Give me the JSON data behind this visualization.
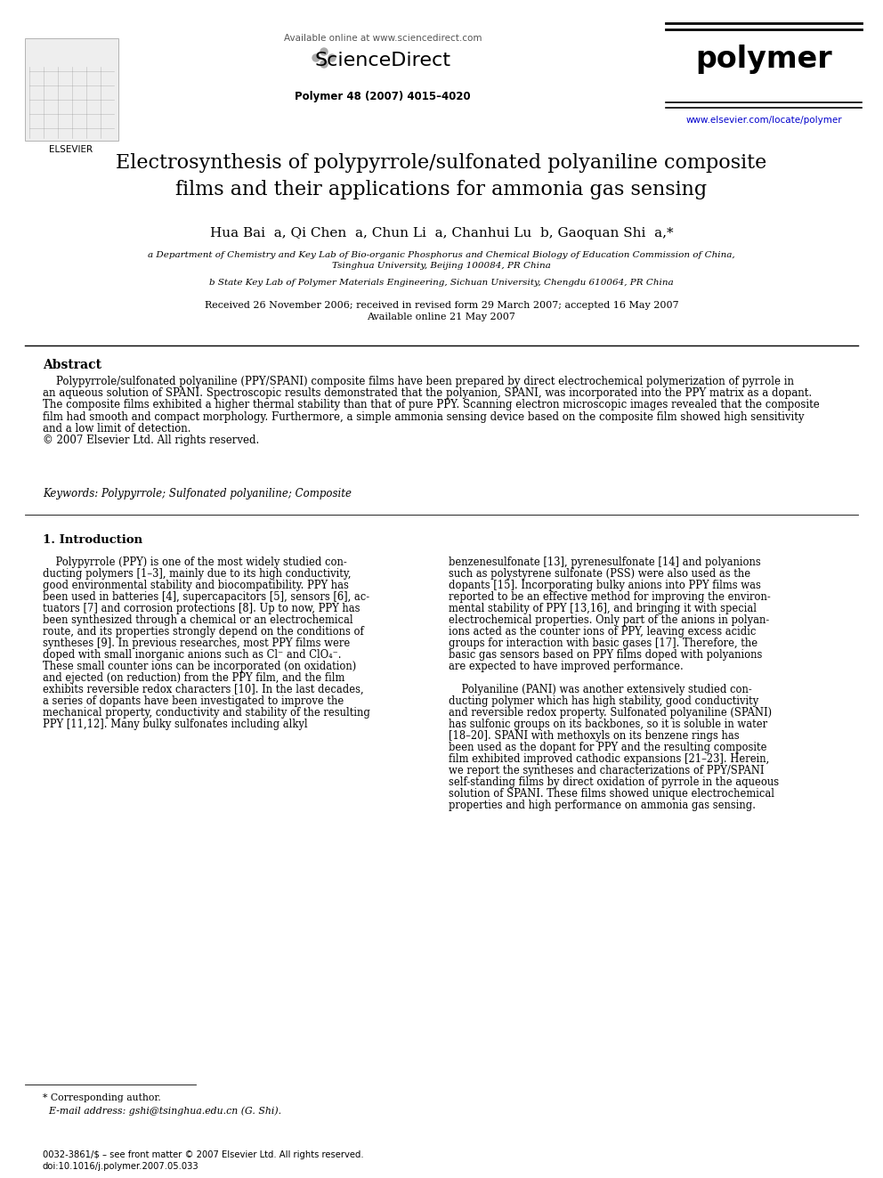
{
  "page_bg": "#ffffff",
  "header": {
    "available_online": "Available online at www.sciencedirect.com",
    "journal_name": "polymer",
    "journal_ref": "Polymer 48 (2007) 4015–4020",
    "url": "www.elsevier.com/locate/polymer"
  },
  "title": "Electrosynthesis of polypyrrole/sulfonated polyaniline composite\nfilms and their applications for ammonia gas sensing",
  "authors": "Hua Bai  a, Qi Chen  a, Chun Li  a, Chanhui Lu  b, Gaoquan Shi  a,*",
  "affil_a": "a Department of Chemistry and Key Lab of Bio-organic Phosphorus and Chemical Biology of Education Commission of China,\nTsinghua University, Beijing 100084, PR China",
  "affil_b": "b State Key Lab of Polymer Materials Engineering, Sichuan University, Chengdu 610064, PR China",
  "received": "Received 26 November 2006; received in revised form 29 March 2007; accepted 16 May 2007\nAvailable online 21 May 2007",
  "abstract_heading": "Abstract",
  "abstract_lines": [
    "    Polypyrrole/sulfonated polyaniline (PPY/SPANI) composite films have been prepared by direct electrochemical polymerization of pyrrole in",
    "an aqueous solution of SPANI. Spectroscopic results demonstrated that the polyanion, SPANI, was incorporated into the PPY matrix as a dopant.",
    "The composite films exhibited a higher thermal stability than that of pure PPY. Scanning electron microscopic images revealed that the composite",
    "film had smooth and compact morphology. Furthermore, a simple ammonia sensing device based on the composite film showed high sensitivity",
    "and a low limit of detection.",
    "© 2007 Elsevier Ltd. All rights reserved."
  ],
  "keywords": "Keywords: Polypyrrole; Sulfonated polyaniline; Composite",
  "intro_heading": "1. Introduction",
  "col1_lines": [
    "    Polypyrrole (PPY) is one of the most widely studied con-",
    "ducting polymers [1–3], mainly due to its high conductivity,",
    "good environmental stability and biocompatibility. PPY has",
    "been used in batteries [4], supercapacitors [5], sensors [6], ac-",
    "tuators [7] and corrosion protections [8]. Up to now, PPY has",
    "been synthesized through a chemical or an electrochemical",
    "route, and its properties strongly depend on the conditions of",
    "syntheses [9]. In previous researches, most PPY films were",
    "doped with small inorganic anions such as Cl⁻ and ClO₄⁻.",
    "These small counter ions can be incorporated (on oxidation)",
    "and ejected (on reduction) from the PPY film, and the film",
    "exhibits reversible redox characters [10]. In the last decades,",
    "a series of dopants have been investigated to improve the",
    "mechanical property, conductivity and stability of the resulting",
    "PPY [11,12]. Many bulky sulfonates including alkyl"
  ],
  "col2_lines": [
    "benzenesulfonate [13], pyrenesulfonate [14] and polyanions",
    "such as polystyrene sulfonate (PSS) were also used as the",
    "dopants [15]. Incorporating bulky anions into PPY films was",
    "reported to be an effective method for improving the environ-",
    "mental stability of PPY [13,16], and bringing it with special",
    "electrochemical properties. Only part of the anions in polyan-",
    "ions acted as the counter ions of PPY, leaving excess acidic",
    "groups for interaction with basic gases [17]. Therefore, the",
    "basic gas sensors based on PPY films doped with polyanions",
    "are expected to have improved performance.",
    "",
    "    Polyaniline (PANI) was another extensively studied con-",
    "ducting polymer which has high stability, good conductivity",
    "and reversible redox property. Sulfonated polyaniline (SPANI)",
    "has sulfonic groups on its backbones, so it is soluble in water",
    "[18–20]. SPANI with methoxyls on its benzene rings has",
    "been used as the dopant for PPY and the resulting composite",
    "film exhibited improved cathodic expansions [21–23]. Herein,",
    "we report the syntheses and characterizations of PPY/SPANI",
    "self-standing films by direct oxidation of pyrrole in the aqueous",
    "solution of SPANI. These films showed unique electrochemical",
    "properties and high performance on ammonia gas sensing."
  ],
  "footnote_line1": "* Corresponding author.",
  "footnote_line2": "  E-mail address: gshi@tsinghua.edu.cn (G. Shi).",
  "footer_line1": "0032-3861/$ – see front matter © 2007 Elsevier Ltd. All rights reserved.",
  "footer_line2": "doi:10.1016/j.polymer.2007.05.033"
}
